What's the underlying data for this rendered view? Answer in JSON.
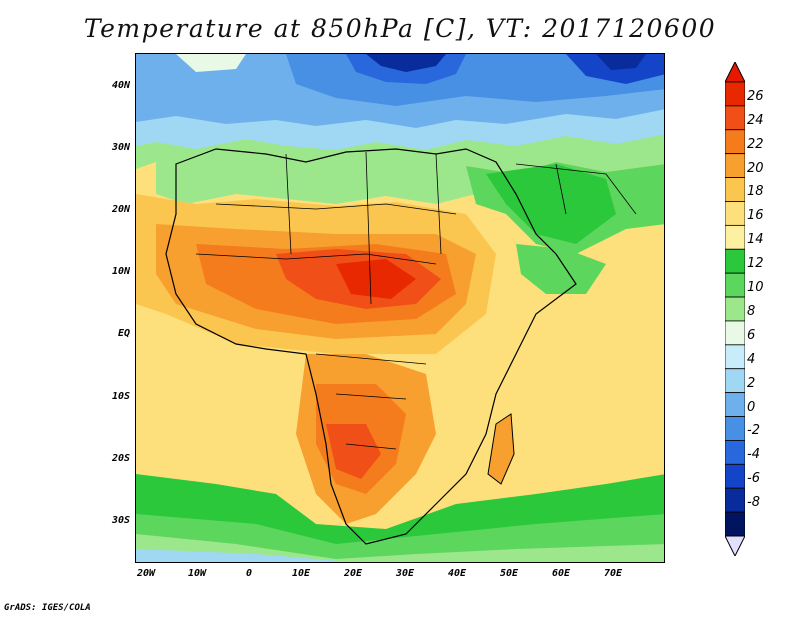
{
  "title": "Temperature at 850hPa [C], VT: 2017120600",
  "credit": "GrADS: IGES/COLA",
  "lat_labels": [
    "40N",
    "30N",
    "20N",
    "10N",
    "EQ",
    "10S",
    "20S",
    "30S"
  ],
  "lon_labels": [
    "20W",
    "10W",
    "0",
    "10E",
    "20E",
    "30E",
    "40E",
    "50E",
    "60E",
    "70E"
  ],
  "colorbar": {
    "levels": [
      "26",
      "24",
      "22",
      "20",
      "18",
      "16",
      "14",
      "12",
      "10",
      "8",
      "6",
      "4",
      "2",
      "0",
      "-2",
      "-4",
      "-6",
      "-8"
    ],
    "colors": [
      "#e82800",
      "#f05018",
      "#f57c1c",
      "#f7a030",
      "#fbc650",
      "#fde07c",
      "#fdf0a0",
      "#2cc83c",
      "#5cd65c",
      "#9ce68c",
      "#e8fae6",
      "#c8ecfa",
      "#a0d8f4",
      "#6eb0ec",
      "#4890e4",
      "#2868dc",
      "#1444c8",
      "#082c9c",
      "#001460"
    ],
    "top_arrow_color": "#e81800",
    "bottom_arrow_color": "#e0e0ff"
  },
  "map_colors": {
    "c26": "#e82800",
    "c24": "#f05018",
    "c22": "#f57c1c",
    "c20": "#f7a030",
    "c18": "#fbc650",
    "c16": "#fde07c",
    "c14": "#fdf0a0",
    "c12": "#2cc83c",
    "c10": "#5cd65c",
    "c8": "#9ce68c",
    "c6": "#e8fae6",
    "c4": "#c8ecfa",
    "c2": "#a0d8f4",
    "c0": "#6eb0ec",
    "cm2": "#4890e4",
    "cm4": "#2868dc",
    "cm6": "#1444c8",
    "cm8": "#082c9c"
  }
}
